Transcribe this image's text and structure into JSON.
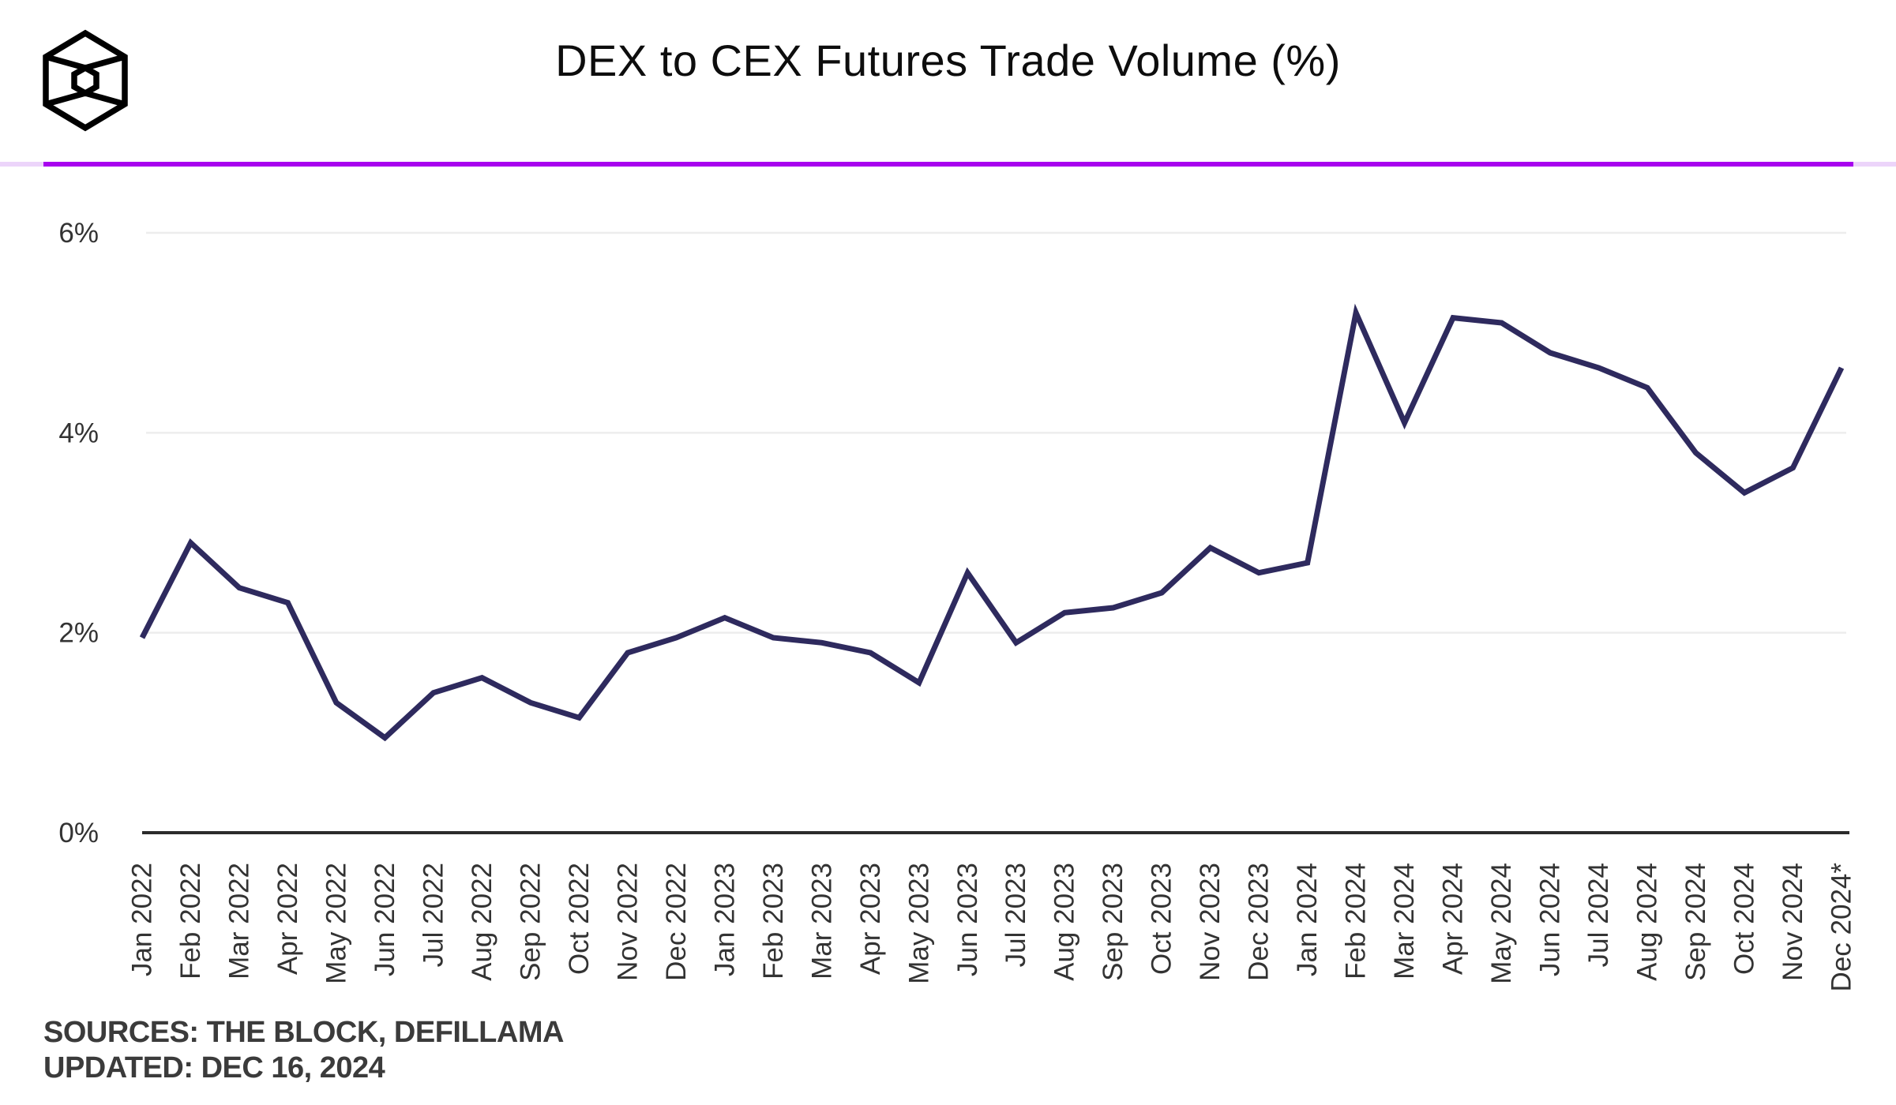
{
  "header": {
    "logo": "the-block-logo",
    "title": "DEX to CEX Futures Trade Volume (%)"
  },
  "colors": {
    "divider_main": "#a802ef",
    "divider_light": "#ecd4fa",
    "series_line": "#2e2a5e",
    "gridline": "#ededed",
    "axis": "#2b2b2b",
    "tick_label": "#333333",
    "title_text": "#0d0d0d",
    "footer_text": "#3b3b3b"
  },
  "footer": {
    "sources": "SOURCES: THE BLOCK, DEFILLAMA",
    "updated": "UPDATED: DEC 16, 2024"
  },
  "chart_data": {
    "type": "line",
    "title": "DEX to CEX Futures Trade Volume (%)",
    "x": [
      "Jan 2022",
      "Feb 2022",
      "Mar 2022",
      "Apr 2022",
      "May 2022",
      "Jun 2022",
      "Jul 2022",
      "Aug 2022",
      "Sep 2022",
      "Oct 2022",
      "Nov 2022",
      "Dec 2022",
      "Jan 2023",
      "Feb 2023",
      "Mar 2023",
      "Apr 2023",
      "May 2023",
      "Jun 2023",
      "Jul 2023",
      "Aug 2023",
      "Sep 2023",
      "Oct 2023",
      "Nov 2023",
      "Dec 2023",
      "Jan 2024",
      "Feb 2024",
      "Mar 2024",
      "Apr 2024",
      "May 2024",
      "Jun 2024",
      "Jul 2024",
      "Aug 2024",
      "Sep 2024",
      "Oct 2024",
      "Nov 2024",
      "Dec 2024*"
    ],
    "values": [
      1.95,
      2.9,
      2.45,
      2.3,
      1.3,
      0.95,
      1.4,
      1.55,
      1.3,
      1.15,
      1.8,
      1.95,
      2.15,
      1.95,
      1.9,
      1.8,
      1.5,
      2.6,
      1.9,
      2.2,
      2.25,
      2.4,
      2.85,
      2.6,
      2.7,
      5.2,
      4.1,
      5.15,
      5.1,
      4.8,
      4.65,
      4.45,
      3.8,
      3.4,
      3.65,
      4.65
    ],
    "ylabel": "",
    "xlabel": "",
    "ylim": [
      0,
      6
    ],
    "ytick_values": [
      0,
      2,
      4,
      6
    ],
    "ytick_labels": [
      "0%",
      "2%",
      "4%",
      "6%"
    ],
    "grid": "horizontal",
    "legend": "none"
  }
}
